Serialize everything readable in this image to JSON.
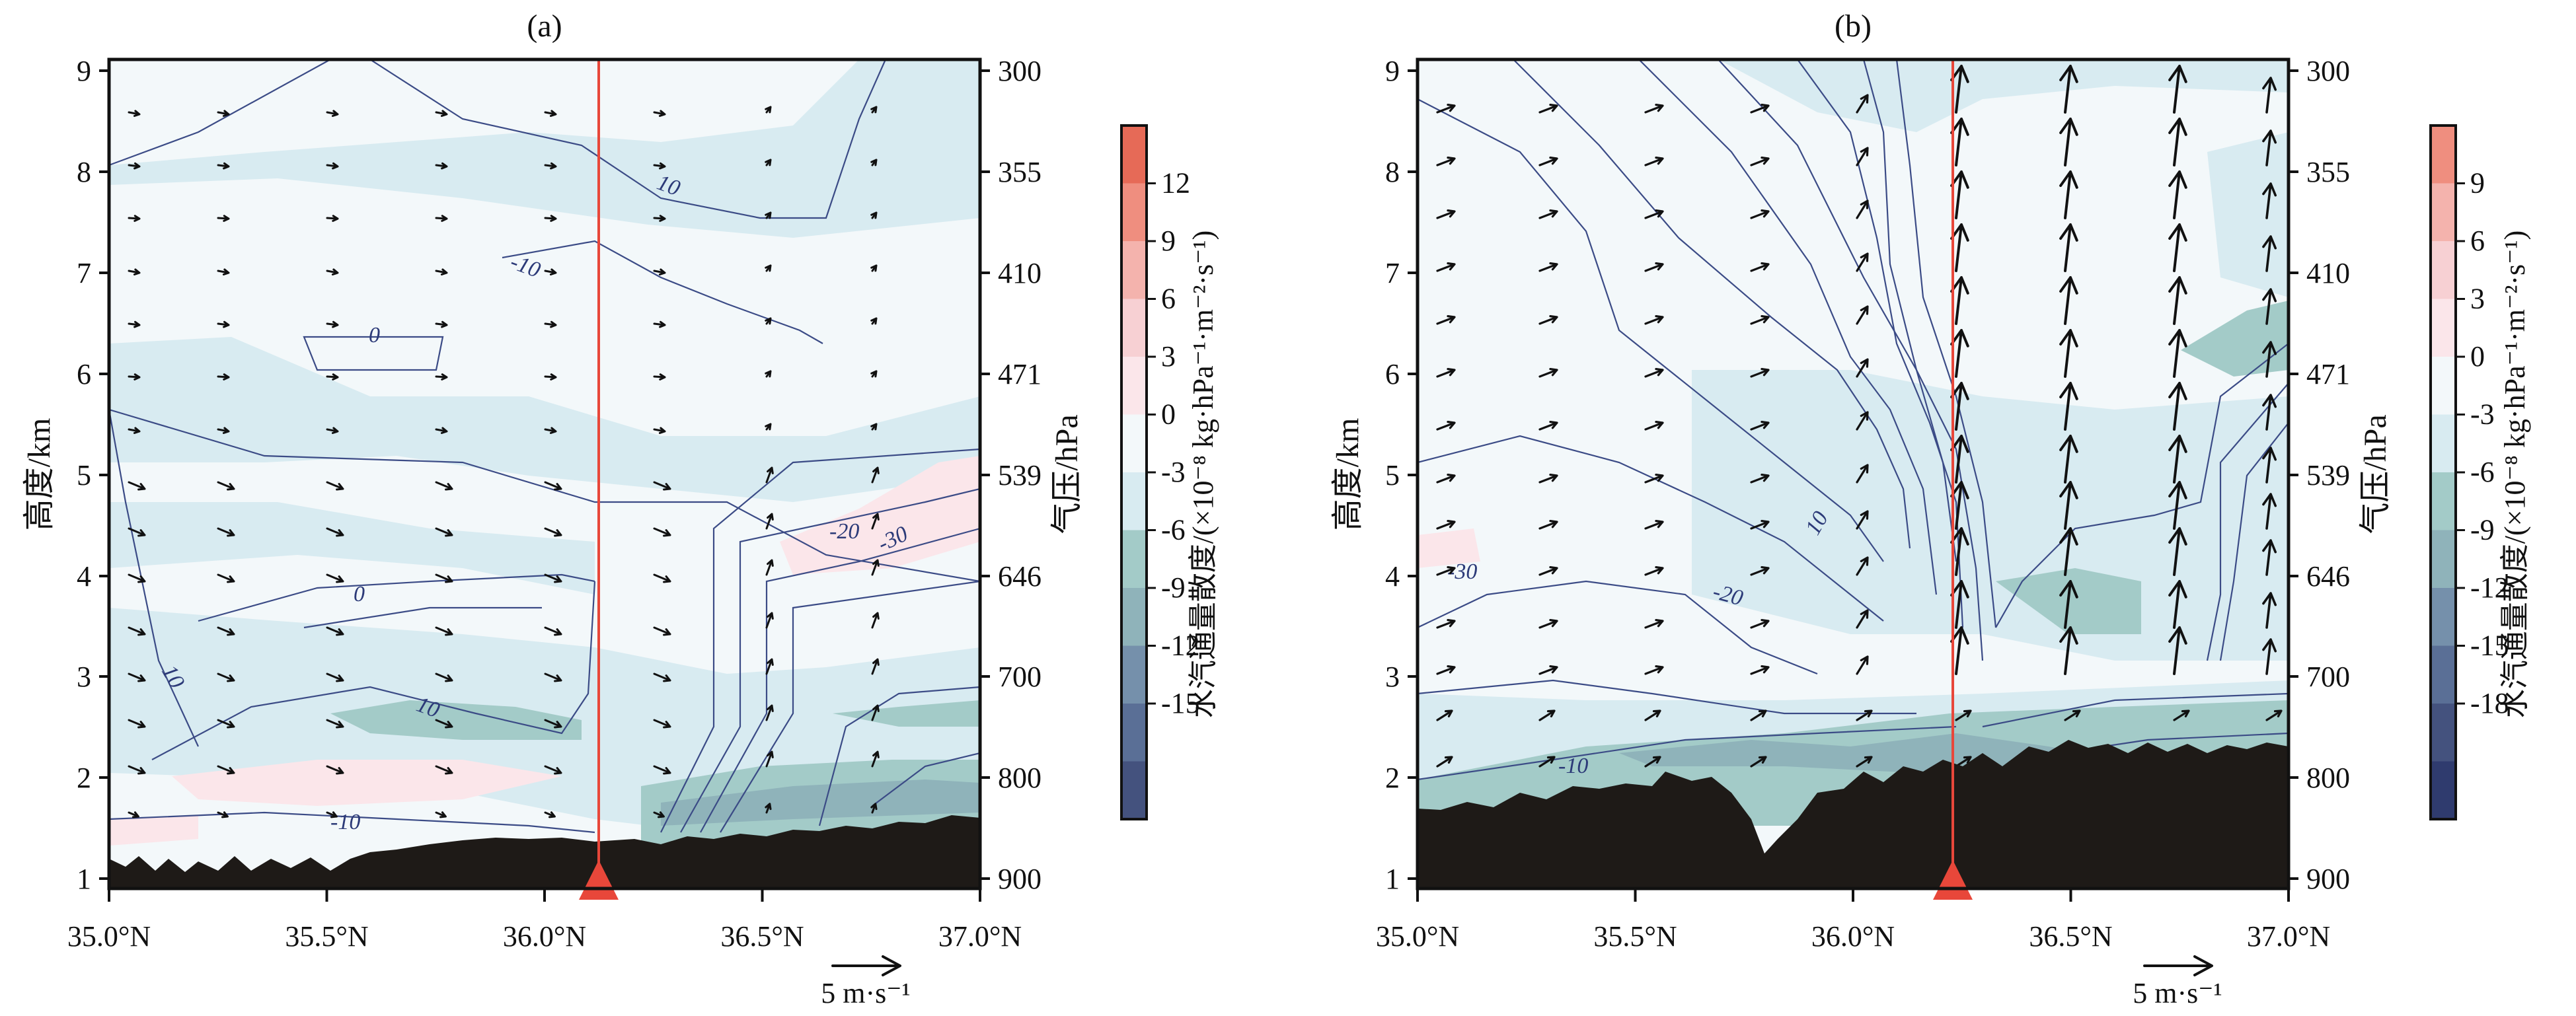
{
  "chart_data": [
    {
      "panel": "(a)",
      "type": "heatmap",
      "title": "(a)",
      "x_ticks": [
        "35.0°N",
        "35.5°N",
        "36.0°N",
        "36.5°N",
        "37.0°N"
      ],
      "x_values": [
        35.0,
        35.5,
        36.0,
        36.5,
        37.0
      ],
      "xlim": [
        35.0,
        37.0
      ],
      "ylabel": "高度/km",
      "y_ticks": [
        1,
        2,
        3,
        4,
        5,
        6,
        7,
        8,
        9
      ],
      "ylim": [
        0.8,
        9.2
      ],
      "y2label": "气压/hPa",
      "y2_ticks": [
        "300",
        "355",
        "410",
        "471",
        "539",
        "646",
        "700",
        "800",
        "900"
      ],
      "colorbar": {
        "label": "水汽通量散度/(×10⁻⁸ kg·hPa⁻¹·m⁻²·s⁻¹)",
        "levels": [
          -18,
          -15,
          -12,
          -9,
          -6,
          -3,
          0,
          3,
          6,
          9,
          12,
          15
        ],
        "tick_labels": [
          "12",
          "9",
          "6",
          "3",
          "0",
          "-3",
          "-6",
          "-9",
          "-12",
          "-15"
        ],
        "colors": [
          "#44527e",
          "#5a6f96",
          "#7590ab",
          "#8fb3ba",
          "#a3cbc8",
          "#d8ebf1",
          "#f3f8fa",
          "#fbe6ea",
          "#f7d0d3",
          "#f4b3ad",
          "#ef8e7f",
          "#e66a57"
        ]
      },
      "contour_labels": [
        "10",
        "-10",
        "0",
        "-20",
        "-30",
        "0",
        "10",
        "10",
        "-10"
      ],
      "station_lat": 36.13,
      "wind_scale_label": "5 m·s⁻¹",
      "wind_scale_speed": 5
    },
    {
      "panel": "(b)",
      "type": "heatmap",
      "title": "(b)",
      "x_ticks": [
        "35.0°N",
        "35.5°N",
        "36.0°N",
        "36.5°N",
        "37.0°N"
      ],
      "x_values": [
        35.0,
        35.5,
        36.0,
        36.5,
        37.0
      ],
      "xlim": [
        35.0,
        37.0
      ],
      "ylabel": "高度/km",
      "y_ticks": [
        1,
        2,
        3,
        4,
        5,
        6,
        7,
        8,
        9
      ],
      "ylim": [
        0.8,
        9.2
      ],
      "y2label": "气压/hPa",
      "y2_ticks": [
        "300",
        "355",
        "410",
        "471",
        "539",
        "646",
        "700",
        "800",
        "900"
      ],
      "colorbar": {
        "label": "水汽通量散度/(×10⁻⁸ kg·hPa⁻¹·m⁻²·s⁻¹)",
        "levels": [
          -21,
          -18,
          -15,
          -12,
          -9,
          -6,
          -3,
          0,
          3,
          6,
          9,
          12
        ],
        "tick_labels": [
          "9",
          "6",
          "3",
          "0",
          "-3",
          "-6",
          "-9",
          "-12",
          "-15",
          "-18"
        ],
        "colors": [
          "#2f3b6e",
          "#44527e",
          "#5a6f96",
          "#7590ab",
          "#8fb3ba",
          "#a3cbc8",
          "#d8ebf1",
          "#f3f8fa",
          "#fbe6ea",
          "#f7d0d3",
          "#f4b3ad",
          "#ef8e7f"
        ]
      },
      "contour_labels": [
        "10",
        "-20",
        "-30",
        "-10"
      ],
      "station_lat": 36.23,
      "wind_scale_label": "5 m·s⁻¹",
      "wind_scale_speed": 5
    }
  ]
}
